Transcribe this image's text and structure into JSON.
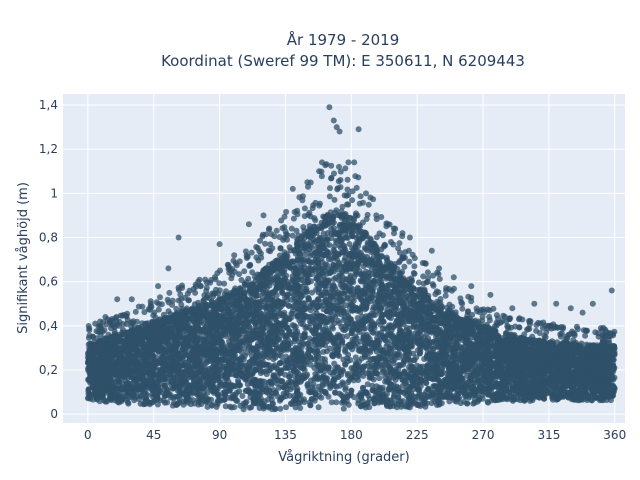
{
  "chart_data": {
    "type": "scatter",
    "title_lines": [
      "År 1979 - 2019",
      "Koordinat (Sweref 99 TM): E 350611, N 6209443"
    ],
    "xlabel": "Vågriktning (grader)",
    "ylabel": "Signifikant våghöjd (m)",
    "xlim": [
      -17,
      367
    ],
    "ylim": [
      -0.04,
      1.45
    ],
    "x_ticks": [
      0,
      45,
      90,
      135,
      180,
      225,
      270,
      315,
      360
    ],
    "x_tick_labels": [
      "0",
      "45",
      "90",
      "135",
      "180",
      "225",
      "270",
      "315",
      "360"
    ],
    "y_ticks": [
      0,
      0.2,
      0.4,
      0.6,
      0.8,
      1.0,
      1.2,
      1.4
    ],
    "y_tick_labels": [
      "0",
      "0,2",
      "0,4",
      "0,6",
      "0,8",
      "1",
      "1,2",
      "1,4"
    ],
    "grid": true,
    "background_color": "#e5ecf6",
    "marker_color": "#2f5068",
    "envelope": {
      "x": [
        0,
        20,
        45,
        70,
        90,
        110,
        135,
        150,
        165,
        175,
        185,
        200,
        225,
        250,
        270,
        300,
        330,
        360
      ],
      "upper": [
        0.32,
        0.36,
        0.42,
        0.48,
        0.52,
        0.6,
        0.74,
        0.84,
        0.92,
        0.92,
        0.86,
        0.74,
        0.58,
        0.46,
        0.4,
        0.34,
        0.32,
        0.31
      ],
      "lower": [
        0.06,
        0.05,
        0.04,
        0.03,
        0.03,
        0.02,
        0.02,
        0.02,
        0.02,
        0.02,
        0.02,
        0.02,
        0.03,
        0.04,
        0.05,
        0.06,
        0.06,
        0.06
      ]
    },
    "outliers": {
      "x": [
        165,
        168,
        170,
        172,
        178,
        182,
        185,
        160,
        158,
        150,
        140,
        120,
        110,
        62,
        90,
        100,
        30,
        48,
        55,
        190,
        205,
        210,
        215,
        220,
        235,
        240,
        250,
        262,
        275,
        290,
        305,
        320,
        330,
        338,
        345,
        358,
        5,
        12,
        20
      ],
      "y": [
        1.39,
        1.33,
        1.3,
        1.28,
        1.14,
        1.14,
        1.29,
        1.14,
        1.1,
        1.05,
        1.02,
        0.9,
        0.86,
        0.8,
        0.77,
        0.72,
        0.52,
        0.58,
        0.66,
        1.0,
        0.86,
        0.84,
        0.82,
        0.8,
        0.74,
        0.66,
        0.62,
        0.58,
        0.54,
        0.48,
        0.5,
        0.5,
        0.48,
        0.46,
        0.5,
        0.56,
        0.41,
        0.44,
        0.52
      ]
    }
  }
}
